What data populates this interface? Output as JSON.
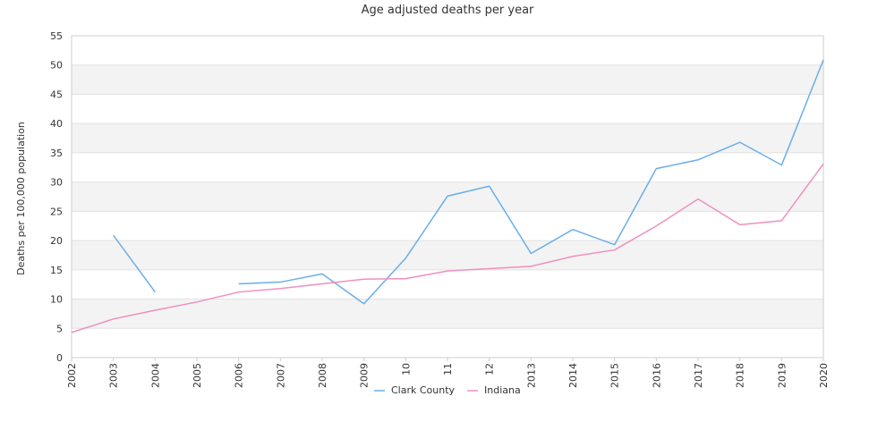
{
  "chart_data": {
    "type": "line",
    "title": "Age adjusted deaths per year",
    "xlabel": "",
    "ylabel": "Deaths per 100,000 population",
    "x": [
      "2002",
      "2003",
      "2004",
      "2005",
      "2006",
      "2007",
      "2008",
      "2009",
      "10",
      "11",
      "12",
      "2013",
      "2014",
      "2015",
      "2016",
      "2017",
      "2018",
      "2019",
      "2020"
    ],
    "ylim": [
      0,
      55
    ],
    "yticks": [
      "0",
      "5",
      "10",
      "15",
      "20",
      "25",
      "30",
      "35",
      "40",
      "45",
      "50",
      "55"
    ],
    "grid": "horizontal bands",
    "legend_position": "bottom-center",
    "series": [
      {
        "name": "Clark County",
        "color": "#6aaee8",
        "values": [
          null,
          20.9,
          11.2,
          null,
          12.6,
          12.9,
          14.3,
          9.2,
          17.0,
          27.6,
          29.3,
          17.8,
          21.9,
          19.3,
          32.3,
          33.8,
          36.8,
          32.9,
          50.9
        ]
      },
      {
        "name": "Indiana",
        "color": "#ef8fc0",
        "values": [
          4.3,
          6.6,
          8.1,
          9.5,
          11.2,
          11.8,
          12.6,
          13.4,
          13.5,
          14.8,
          15.2,
          15.6,
          17.3,
          18.4,
          22.5,
          27.1,
          22.7,
          23.4,
          33.1
        ]
      }
    ]
  }
}
